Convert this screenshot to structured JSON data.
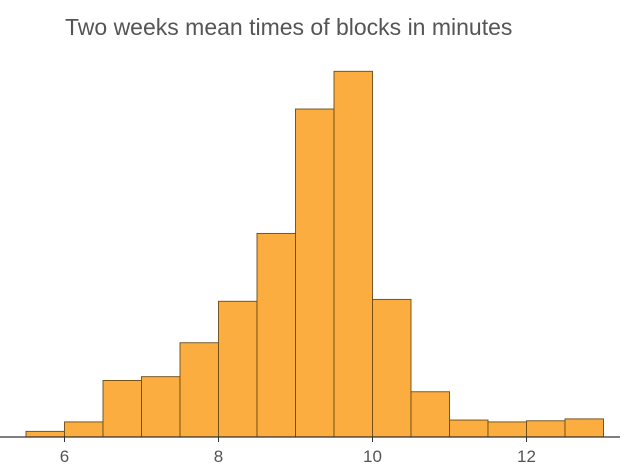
{
  "chart_data": {
    "type": "bar",
    "title": "Two weeks mean times of blocks in minutes",
    "xlabel": "",
    "ylabel": "",
    "xlim": [
      5.5,
      13.2
    ],
    "xticks": [
      6,
      8,
      10,
      12
    ],
    "bin_width": 0.5,
    "bins": [
      {
        "start": 5.5,
        "end": 6.0,
        "value": 1.5
      },
      {
        "start": 6.0,
        "end": 6.5,
        "value": 4
      },
      {
        "start": 6.5,
        "end": 7.0,
        "value": 15
      },
      {
        "start": 7.0,
        "end": 7.5,
        "value": 16
      },
      {
        "start": 7.5,
        "end": 8.0,
        "value": 25
      },
      {
        "start": 8.0,
        "end": 8.5,
        "value": 36
      },
      {
        "start": 8.5,
        "end": 9.0,
        "value": 54
      },
      {
        "start": 9.0,
        "end": 9.5,
        "value": 87
      },
      {
        "start": 9.5,
        "end": 10.0,
        "value": 97
      },
      {
        "start": 10.0,
        "end": 10.5,
        "value": 36.5
      },
      {
        "start": 10.5,
        "end": 11.0,
        "value": 12
      },
      {
        "start": 11.0,
        "end": 11.5,
        "value": 4.5
      },
      {
        "start": 11.5,
        "end": 12.0,
        "value": 4
      },
      {
        "start": 12.0,
        "end": 12.5,
        "value": 4.3
      },
      {
        "start": 12.5,
        "end": 13.0,
        "value": 4.8
      }
    ],
    "ylim": [
      0,
      100
    ],
    "grid": false,
    "legend": "none",
    "bar_color": "#fbae3f",
    "bar_edge_color": "#6b4a16",
    "axis_color": "#333333",
    "text_color": "#555555"
  }
}
